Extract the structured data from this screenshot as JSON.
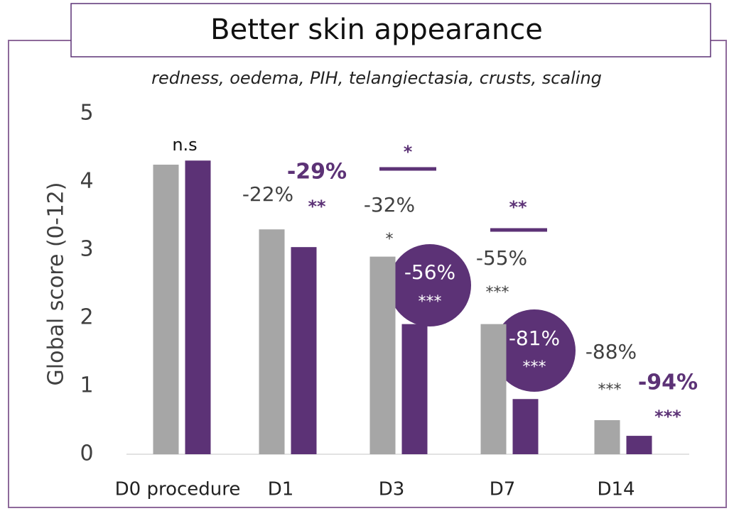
{
  "chart_data": {
    "type": "bar",
    "title": "Better skin appearance",
    "subtitle": "redness, oedema, PIH, telangiectasia, crusts, scaling",
    "y_label": "Global score (0-12)",
    "categories": [
      "D0 procedure",
      "D1",
      "D3",
      "D7",
      "D14"
    ],
    "series": [
      {
        "color": "#a6a6a6",
        "values": [
          4.25,
          3.3,
          2.9,
          1.91,
          0.5
        ]
      },
      {
        "color": "#5c3276",
        "values": [
          4.31,
          3.04,
          1.91,
          0.81,
          0.27
        ]
      }
    ],
    "ylim": [
      0,
      5
    ],
    "yticks": [
      0,
      1,
      2,
      3,
      4,
      5
    ],
    "grid": false,
    "annotations": [
      "n.s",
      "-22%",
      "-29%",
      "**",
      "*",
      "-32%",
      "*",
      "-56%",
      "***",
      "-55%",
      "***",
      "**",
      "-81%",
      "***",
      "-88%",
      "***",
      "-94%",
      "***"
    ]
  }
}
